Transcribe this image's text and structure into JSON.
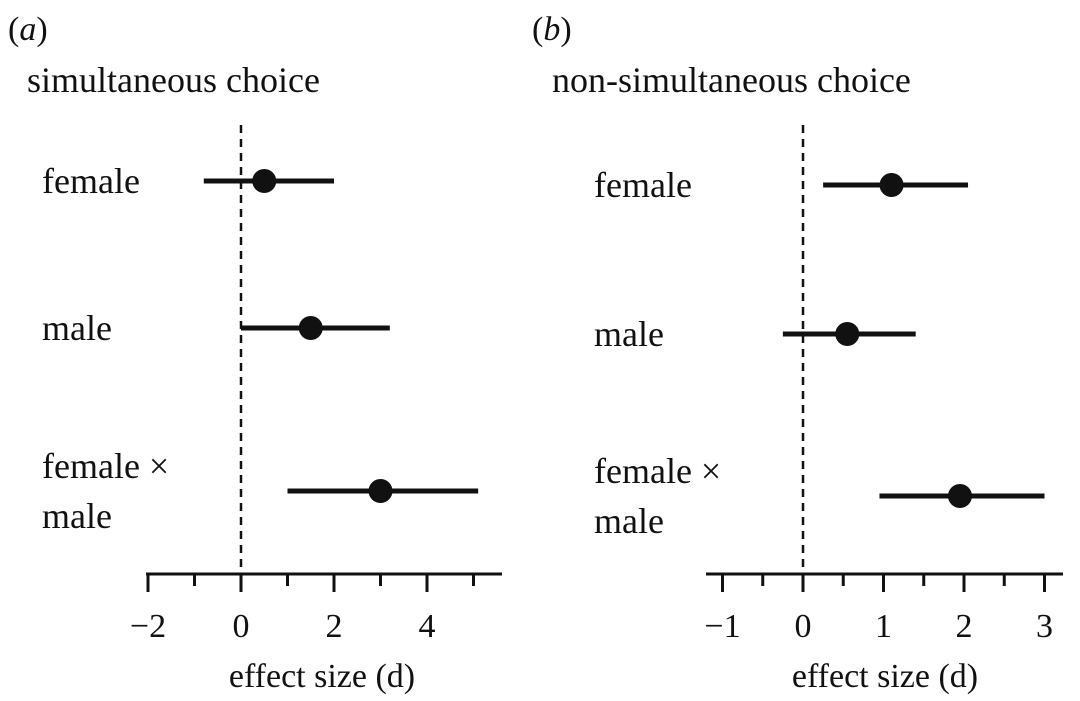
{
  "chart_data": [
    {
      "type": "scatter",
      "panel_label": "(a)",
      "panel_letter": "a",
      "title": "simultaneous choice",
      "xlabel": "effect size (d)",
      "xlim": [
        -2.2,
        5.6
      ],
      "major_ticks": [
        -2,
        0,
        2,
        4
      ],
      "minor_ticks": [
        -1,
        1,
        3,
        5
      ],
      "tick_labels": [
        "−2",
        "0",
        "2",
        "4"
      ],
      "reference_line": 0,
      "categories": [
        {
          "label_lines": [
            "female"
          ],
          "estimate": 0.5,
          "ci": [
            -0.8,
            2.0
          ]
        },
        {
          "label_lines": [
            "male"
          ],
          "estimate": 1.5,
          "ci": [
            0.0,
            3.2
          ]
        },
        {
          "label_lines": [
            "female ×",
            "male"
          ],
          "estimate": 3.0,
          "ci": [
            1.0,
            5.1
          ]
        }
      ]
    },
    {
      "type": "scatter",
      "panel_label": "(b)",
      "panel_letter": "b",
      "title": "non-simultaneous choice",
      "xlabel": "effect size (d)",
      "xlim": [
        -1.25,
        3.3
      ],
      "major_ticks": [
        -1,
        0,
        1,
        2,
        3
      ],
      "minor_ticks": [
        -0.5,
        0.5,
        1.5,
        2.5
      ],
      "tick_labels": [
        "−1",
        "0",
        "1",
        "2",
        "3"
      ],
      "reference_line": 0,
      "categories": [
        {
          "label_lines": [
            "female"
          ],
          "estimate": 1.1,
          "ci": [
            0.25,
            2.05
          ]
        },
        {
          "label_lines": [
            "male"
          ],
          "estimate": 0.55,
          "ci": [
            -0.25,
            1.4
          ]
        },
        {
          "label_lines": [
            "female ×",
            "male"
          ],
          "estimate": 1.95,
          "ci": [
            0.95,
            3.0
          ]
        }
      ]
    }
  ]
}
